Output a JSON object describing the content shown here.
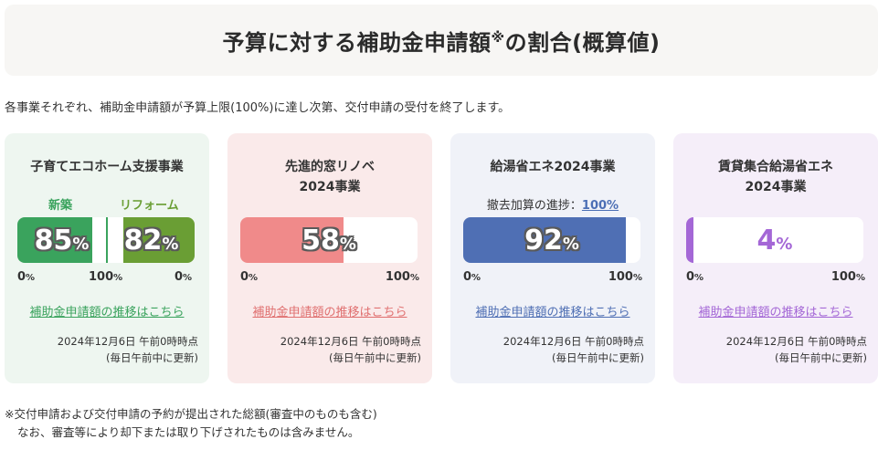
{
  "header": {
    "title_main": "予算に対する補助金申請額",
    "title_mark": "※",
    "title_tail": "の割合(概算値)"
  },
  "intro": "各事業それぞれ、補助金申請額が予算上限(100%)に達し次第、交付申請の受付を終了します。",
  "cards": [
    {
      "title": "子育てエコホーム支援事業",
      "labels": {
        "new": "新築",
        "reform": "リフォーム"
      },
      "bars": [
        {
          "value": "85",
          "unit": "%",
          "fill": 0.85,
          "color": "#3aa35d"
        },
        {
          "value": "82",
          "unit": "%",
          "fill": 0.82,
          "color": "#6a9e34"
        }
      ],
      "axis": {
        "left0": "0",
        "mid100": "100",
        "right0": "0",
        "unit": "%"
      },
      "link": "補助金申請額の推移はこちら",
      "link_color": "#3aa35d",
      "updated_line1": "2024年12月6日 午前0時時点",
      "updated_line2": "(毎日午前中に更新)",
      "bg": "#eef6f0"
    },
    {
      "title_line1": "先進的窓リノベ",
      "title_line2": "2024事業",
      "bar": {
        "value": "58",
        "unit": "%",
        "fill": 0.58,
        "color": "#f08a8a"
      },
      "axis": {
        "min": "0",
        "max": "100",
        "unit": "%"
      },
      "link": "補助金申請額の推移はこちら",
      "link_color": "#e07070",
      "updated_line1": "2024年12月6日 午前0時時点",
      "updated_line2": "(毎日午前中に更新)",
      "bg": "#faeaea"
    },
    {
      "title": "給湯省エネ2024事業",
      "progress_label": "撤去加算の進捗：",
      "progress_value": "100%",
      "bar": {
        "value": "92",
        "unit": "%",
        "fill": 0.92,
        "color": "#4f6fb4"
      },
      "axis": {
        "min": "0",
        "max": "100",
        "unit": "%"
      },
      "link": "補助金申請額の推移はこちら",
      "link_color": "#4f6fb4",
      "updated_line1": "2024年12月6日 午前0時時点",
      "updated_line2": "(毎日午前中に更新)",
      "bg": "#f0f2f8"
    },
    {
      "title_line1": "賃貸集合給湯省エネ",
      "title_line2": "2024事業",
      "bar": {
        "value": "4",
        "unit": "%",
        "fill": 0.04,
        "color": "#a467d6"
      },
      "axis": {
        "min": "0",
        "max": "100",
        "unit": "%"
      },
      "link": "補助金申請額の推移はこちら",
      "link_color": "#a467d6",
      "updated_line1": "2024年12月6日 午前0時時点",
      "updated_line2": "(毎日午前中に更新)",
      "bg": "#f5eef9"
    }
  ],
  "footnote": {
    "line1": "※交付申請および交付申請の予約が提出された総額(審査中のものも含む)",
    "line2": "なお、審査等により却下または取り下げされたものは含みません。"
  }
}
